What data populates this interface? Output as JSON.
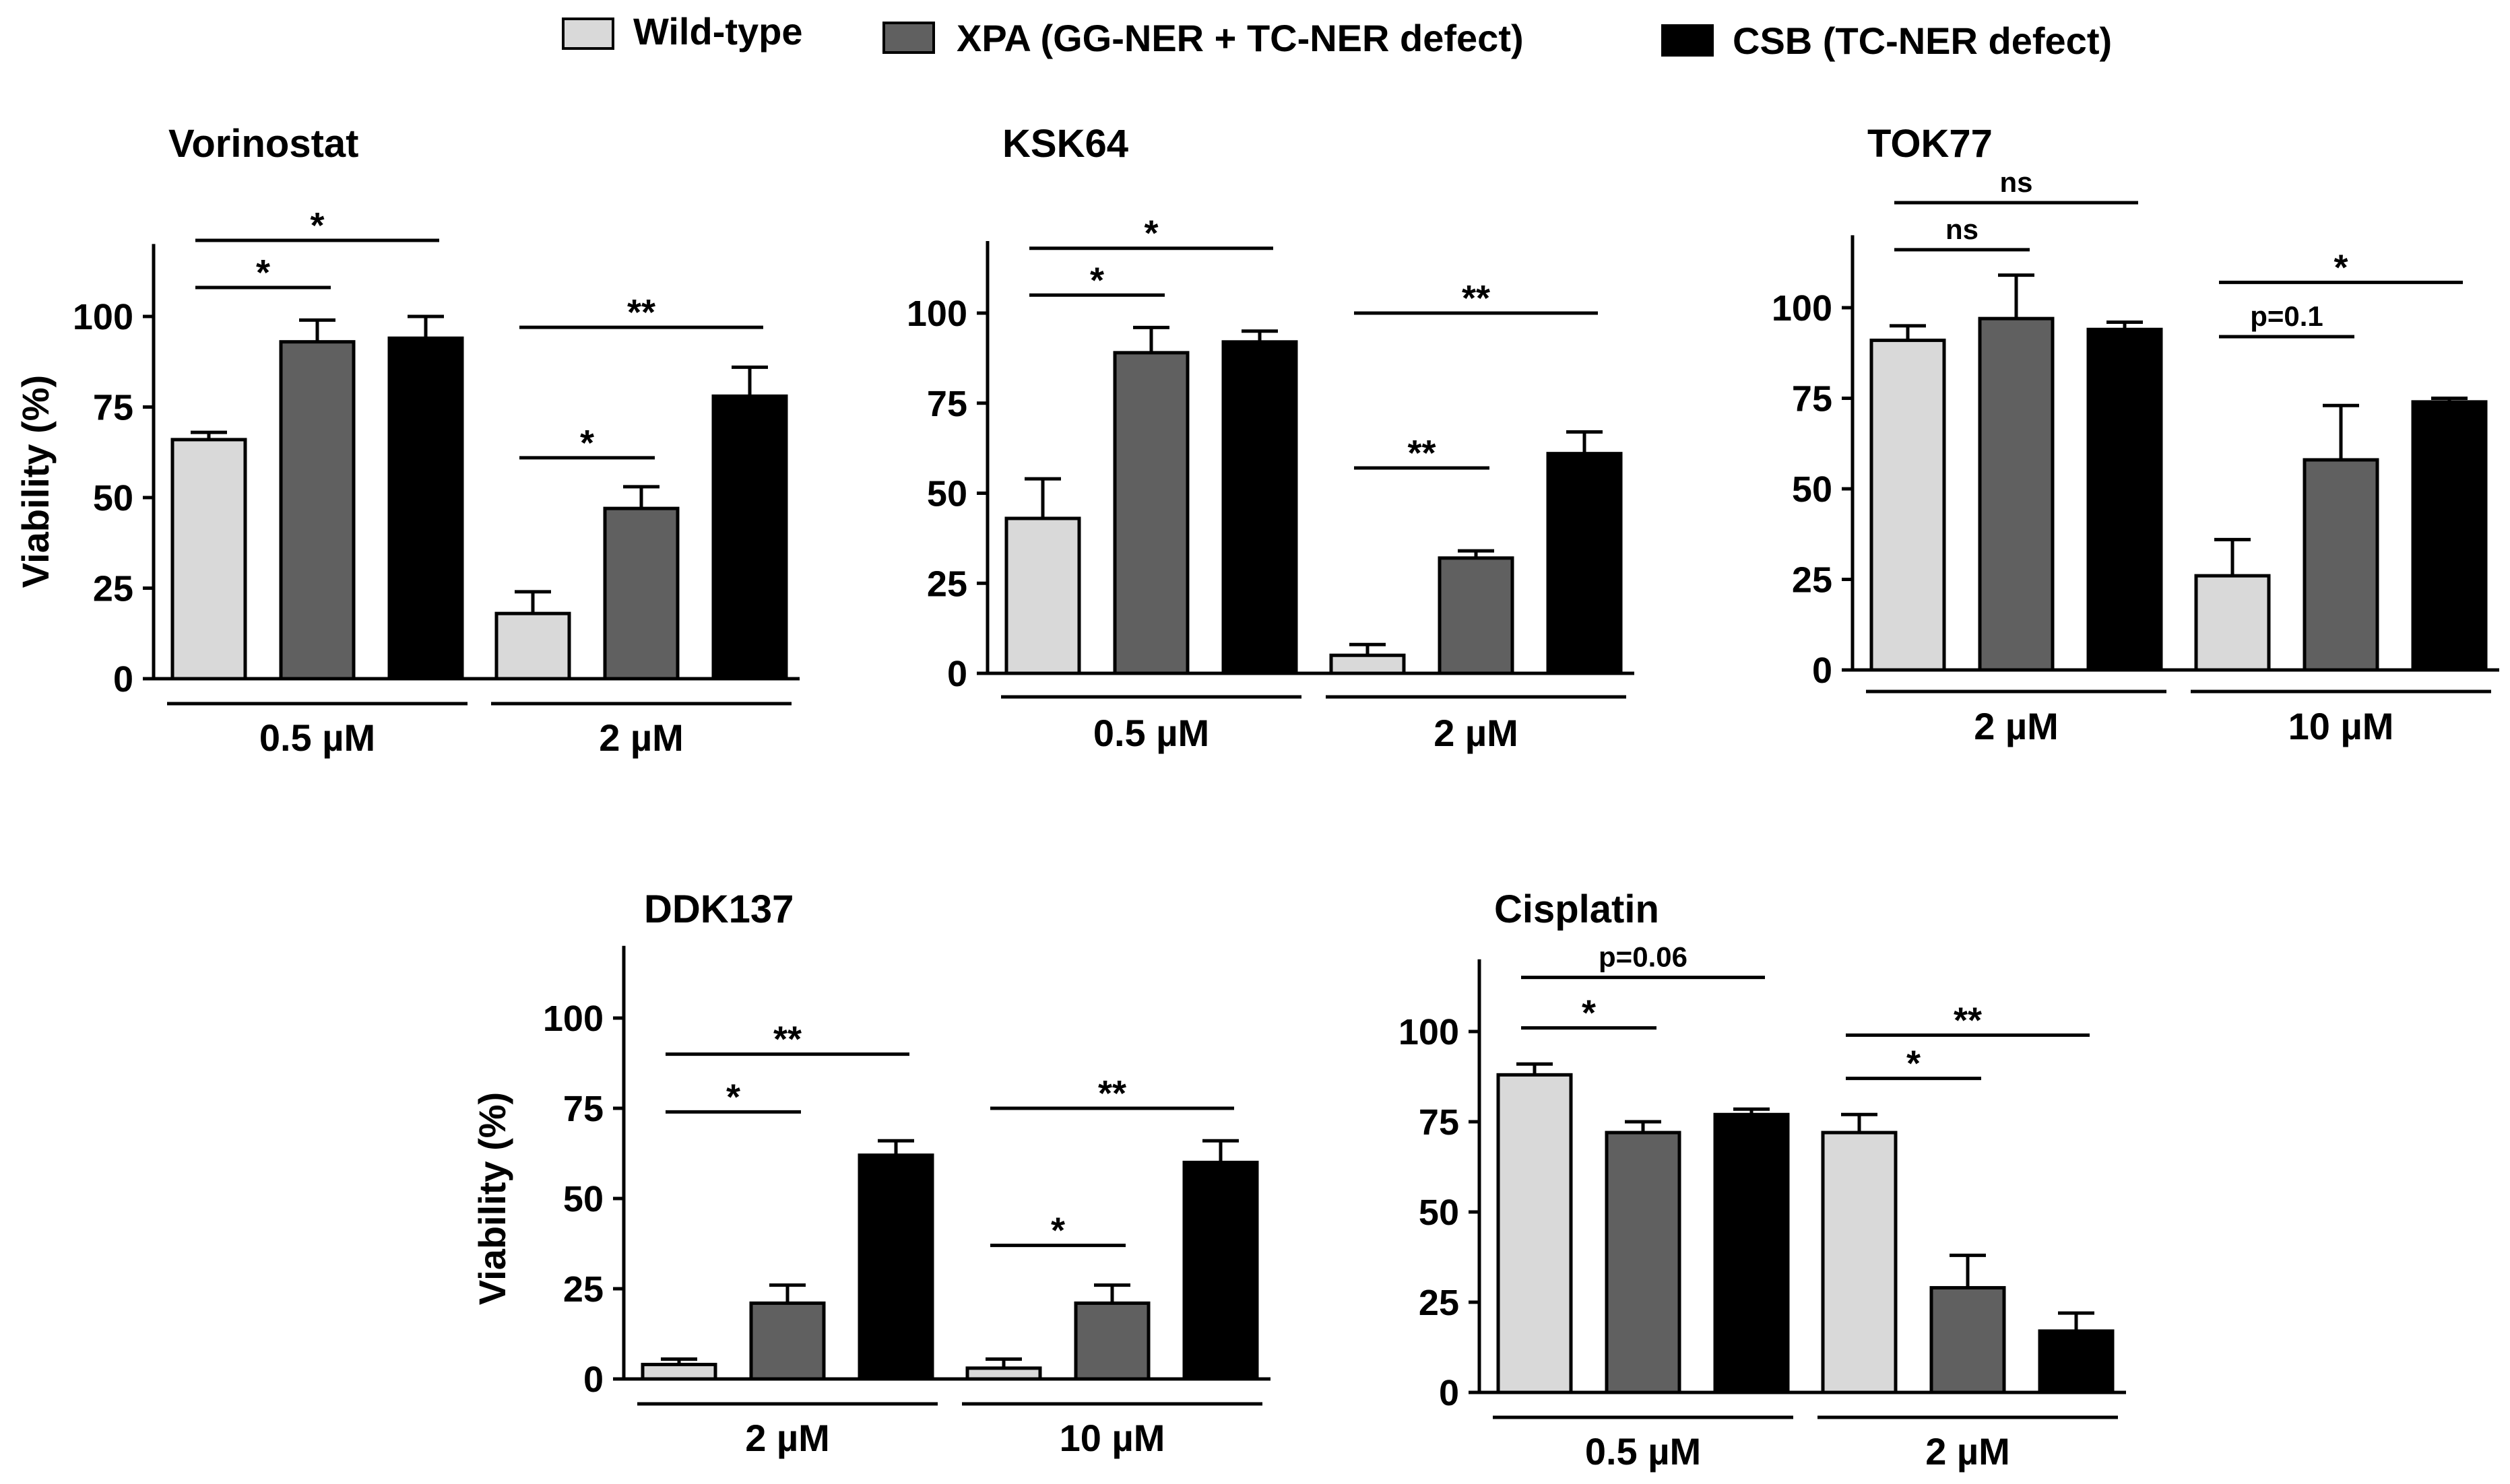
{
  "legend": [
    {
      "label": "Wild-type",
      "color": "#d9d9d9"
    },
    {
      "label": "XPA (GG-NER + TC-NER defect)",
      "color": "#606060"
    },
    {
      "label": "CSB (TC-NER defect)",
      "color": "#000000"
    }
  ],
  "chart_data": [
    {
      "type": "bar",
      "title": "Vorinostat",
      "ylabel": "Viability (%)",
      "ylim": [
        0,
        120
      ],
      "yticks": [
        0,
        25,
        50,
        75,
        100
      ],
      "groups": [
        "0.5 µM",
        "2 µM"
      ],
      "series": [
        {
          "name": "Wild-type",
          "values": [
            66,
            18
          ],
          "errors": [
            2,
            6
          ]
        },
        {
          "name": "XPA (GG-NER + TC-NER defect)",
          "values": [
            93,
            47
          ],
          "errors": [
            6,
            6
          ]
        },
        {
          "name": "CSB (TC-NER defect)",
          "values": [
            94,
            78
          ],
          "errors": [
            6,
            8
          ]
        }
      ],
      "annotations": [
        {
          "group": 0,
          "from": 0,
          "to": 2,
          "label": "*",
          "level": 121
        },
        {
          "group": 0,
          "from": 0,
          "to": 1,
          "label": "*",
          "level": 108
        },
        {
          "group": 1,
          "from": 0,
          "to": 2,
          "label": "**",
          "level": 97
        },
        {
          "group": 1,
          "from": 0,
          "to": 1,
          "label": "*",
          "level": 61
        }
      ]
    },
    {
      "type": "bar",
      "title": "KSK64",
      "ylabel": "",
      "ylim": [
        0,
        120
      ],
      "yticks": [
        0,
        25,
        50,
        75,
        100
      ],
      "groups": [
        "0.5 µM",
        "2 µM"
      ],
      "series": [
        {
          "name": "Wild-type",
          "values": [
            43,
            5
          ],
          "errors": [
            11,
            3
          ]
        },
        {
          "name": "XPA (GG-NER + TC-NER defect)",
          "values": [
            89,
            32
          ],
          "errors": [
            7,
            2
          ]
        },
        {
          "name": "CSB (TC-NER defect)",
          "values": [
            92,
            61
          ],
          "errors": [
            3,
            6
          ]
        }
      ],
      "annotations": [
        {
          "group": 0,
          "from": 0,
          "to": 2,
          "label": "*",
          "level": 118
        },
        {
          "group": 0,
          "from": 0,
          "to": 1,
          "label": "*",
          "level": 105
        },
        {
          "group": 1,
          "from": 0,
          "to": 2,
          "label": "**",
          "level": 100
        },
        {
          "group": 1,
          "from": 0,
          "to": 1,
          "label": "**",
          "level": 57
        }
      ]
    },
    {
      "type": "bar",
      "title": "TOK77",
      "ylabel": "",
      "ylim": [
        0,
        120
      ],
      "yticks": [
        0,
        25,
        50,
        75,
        100
      ],
      "groups": [
        "2 µM",
        "10 µM"
      ],
      "series": [
        {
          "name": "Wild-type",
          "values": [
            91,
            26
          ],
          "errors": [
            4,
            10
          ]
        },
        {
          "name": "XPA (GG-NER + TC-NER defect)",
          "values": [
            97,
            58
          ],
          "errors": [
            12,
            15
          ]
        },
        {
          "name": "CSB (TC-NER defect)",
          "values": [
            94,
            74
          ],
          "errors": [
            2,
            1
          ]
        }
      ],
      "annotations": [
        {
          "group": 0,
          "from": 0,
          "to": 2,
          "label": "ns",
          "level": 129
        },
        {
          "group": 0,
          "from": 0,
          "to": 1,
          "label": "ns",
          "level": 116
        },
        {
          "group": 1,
          "from": 0,
          "to": 2,
          "label": "*",
          "level": 107
        },
        {
          "group": 1,
          "from": 0,
          "to": 1,
          "label": "p=0.1",
          "level": 92
        }
      ]
    },
    {
      "type": "bar",
      "title": "DDK137",
      "ylabel": "Viability (%)",
      "ylim": [
        0,
        120
      ],
      "yticks": [
        0,
        25,
        50,
        75,
        100
      ],
      "groups": [
        "2 µM",
        "10 µM"
      ],
      "series": [
        {
          "name": "Wild-type",
          "values": [
            4,
            3
          ],
          "errors": [
            1.5,
            2.5
          ]
        },
        {
          "name": "XPA (GG-NER + TC-NER defect)",
          "values": [
            21,
            21
          ],
          "errors": [
            5,
            5
          ]
        },
        {
          "name": "CSB (TC-NER defect)",
          "values": [
            62,
            60
          ],
          "errors": [
            4,
            6
          ]
        }
      ],
      "annotations": [
        {
          "group": 0,
          "from": 0,
          "to": 2,
          "label": "**",
          "level": 90
        },
        {
          "group": 0,
          "from": 0,
          "to": 1,
          "label": "*",
          "level": 74
        },
        {
          "group": 1,
          "from": 0,
          "to": 2,
          "label": "**",
          "level": 75
        },
        {
          "group": 1,
          "from": 0,
          "to": 1,
          "label": "*",
          "level": 37
        }
      ]
    },
    {
      "type": "bar",
      "title": "Cisplatin",
      "ylabel": "",
      "ylim": [
        0,
        120
      ],
      "yticks": [
        0,
        25,
        50,
        75,
        100
      ],
      "groups": [
        "0.5 µM",
        "2 µM"
      ],
      "series": [
        {
          "name": "Wild-type",
          "values": [
            88,
            72
          ],
          "errors": [
            3,
            5
          ]
        },
        {
          "name": "XPA (GG-NER + TC-NER defect)",
          "values": [
            72,
            29
          ],
          "errors": [
            3,
            9
          ]
        },
        {
          "name": "CSB (TC-NER defect)",
          "values": [
            77,
            17
          ],
          "errors": [
            1.5,
            5
          ]
        }
      ],
      "annotations": [
        {
          "group": 0,
          "from": 0,
          "to": 2,
          "label": "p=0.06",
          "level": 115
        },
        {
          "group": 0,
          "from": 0,
          "to": 1,
          "label": "*",
          "level": 101
        },
        {
          "group": 1,
          "from": 0,
          "to": 2,
          "label": "**",
          "level": 99
        },
        {
          "group": 1,
          "from": 0,
          "to": 1,
          "label": "*",
          "level": 87
        }
      ]
    }
  ]
}
